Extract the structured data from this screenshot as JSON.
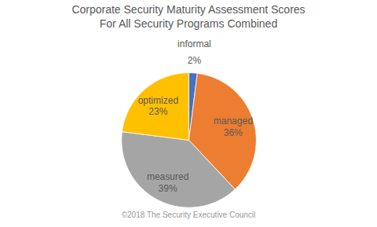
{
  "chart_data": {
    "type": "pie",
    "title": "Corporate Security Maturity Assessment Scores\nFor All Security Programs Combined",
    "footer": "©2018 The Security Executive Council",
    "categories": [
      "informal",
      "managed",
      "measured",
      "optimized"
    ],
    "values": [
      2,
      36,
      39,
      23
    ],
    "value_labels": [
      "2%",
      "36%",
      "39%",
      "23%"
    ],
    "colors": [
      "#4472C4",
      "#ED7D31",
      "#A5A5A5",
      "#FFC000"
    ],
    "data_labels": true
  }
}
